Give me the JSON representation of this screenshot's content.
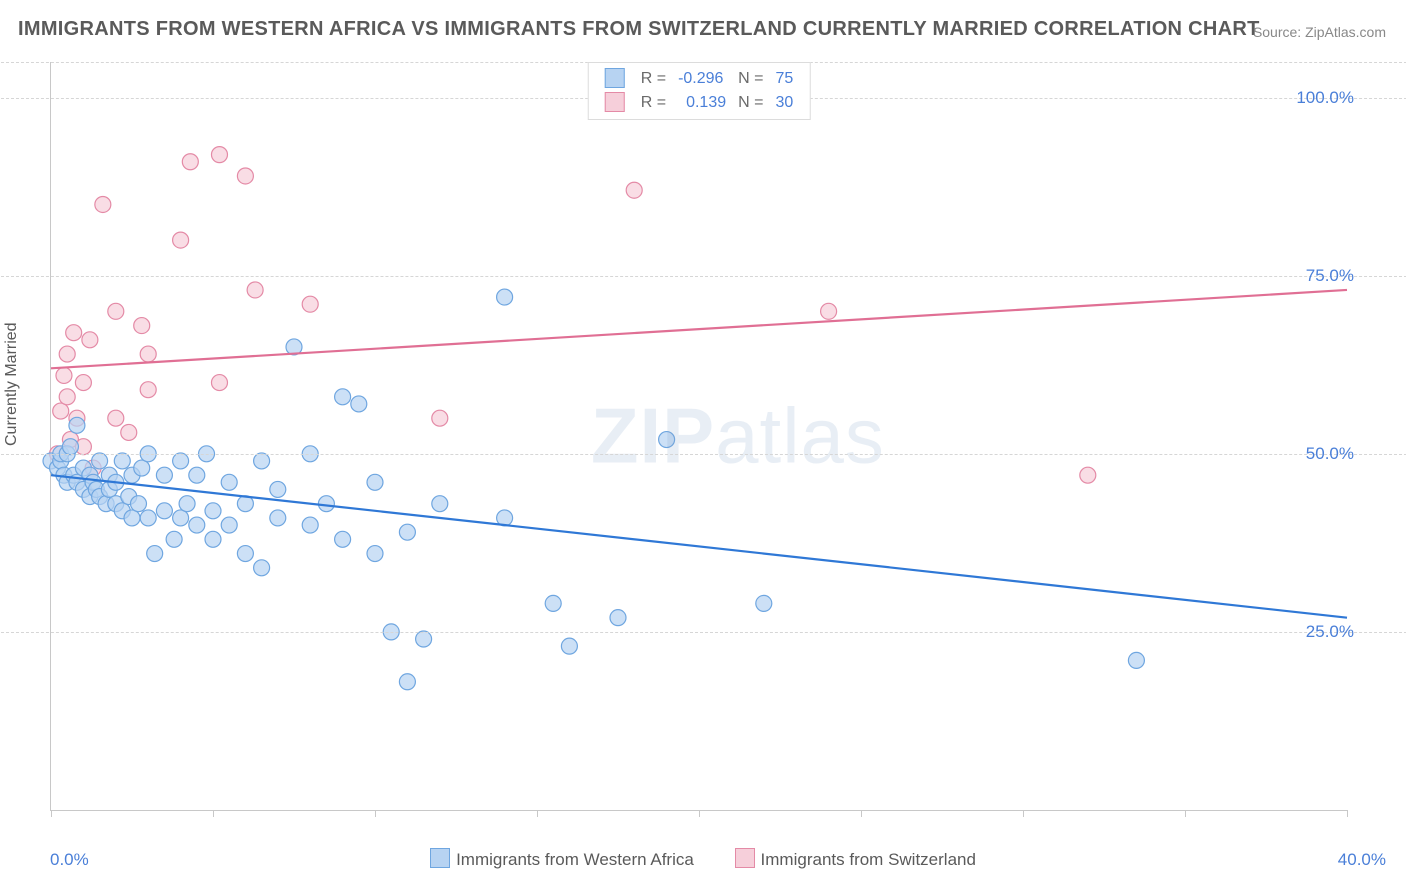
{
  "title": "IMMIGRANTS FROM WESTERN AFRICA VS IMMIGRANTS FROM SWITZERLAND CURRENTLY MARRIED CORRELATION CHART",
  "source": "Source: ZipAtlas.com",
  "watermark_bold": "ZIP",
  "watermark_light": "atlas",
  "chart": {
    "type": "scatter_with_regression",
    "x_min": 0.0,
    "x_max": 40.0,
    "y_min": 0.0,
    "y_max": 105.0,
    "x_tick_positions": [
      0,
      5,
      10,
      15,
      20,
      25,
      30,
      35,
      40
    ],
    "x_tick_labels_shown": {
      "0": "0.0%",
      "40": "40.0%"
    },
    "y_ticks": [
      {
        "v": 25.0,
        "label": "25.0%"
      },
      {
        "v": 50.0,
        "label": "50.0%"
      },
      {
        "v": 75.0,
        "label": "75.0%"
      },
      {
        "v": 100.0,
        "label": "100.0%"
      }
    ],
    "y_axis_label": "Currently Married",
    "grid_color": "#d6d6d6",
    "axis_color": "#c8c8c8",
    "background": "#ffffff"
  },
  "series": [
    {
      "name": "Immigrants from Western Africa",
      "color_fill": "#b7d3f2",
      "color_stroke": "#6fa6e0",
      "line_color": "#2f78d6",
      "marker_radius": 8,
      "R": "-0.296",
      "N": "75",
      "regression": {
        "x1": 0.0,
        "y1": 47.0,
        "x2": 40.0,
        "y2": 27.0
      },
      "points": [
        [
          0.0,
          49
        ],
        [
          0.2,
          48
        ],
        [
          0.3,
          49
        ],
        [
          0.3,
          50
        ],
        [
          0.4,
          47
        ],
        [
          0.5,
          46
        ],
        [
          0.5,
          50
        ],
        [
          0.6,
          51
        ],
        [
          0.7,
          47
        ],
        [
          0.8,
          54
        ],
        [
          0.8,
          46
        ],
        [
          1.0,
          45
        ],
        [
          1.0,
          48
        ],
        [
          1.2,
          47
        ],
        [
          1.2,
          44
        ],
        [
          1.3,
          46
        ],
        [
          1.4,
          45
        ],
        [
          1.5,
          49
        ],
        [
          1.5,
          44
        ],
        [
          1.7,
          43
        ],
        [
          1.8,
          47
        ],
        [
          1.8,
          45
        ],
        [
          2.0,
          46
        ],
        [
          2.0,
          43
        ],
        [
          2.2,
          49
        ],
        [
          2.2,
          42
        ],
        [
          2.4,
          44
        ],
        [
          2.5,
          47
        ],
        [
          2.5,
          41
        ],
        [
          2.7,
          43
        ],
        [
          2.8,
          48
        ],
        [
          3.0,
          41
        ],
        [
          3.0,
          50
        ],
        [
          3.2,
          36
        ],
        [
          3.5,
          47
        ],
        [
          3.5,
          42
        ],
        [
          3.8,
          38
        ],
        [
          4.0,
          49
        ],
        [
          4.0,
          41
        ],
        [
          4.2,
          43
        ],
        [
          4.5,
          47
        ],
        [
          4.5,
          40
        ],
        [
          4.8,
          50
        ],
        [
          5.0,
          42
        ],
        [
          5.0,
          38
        ],
        [
          5.5,
          40
        ],
        [
          5.5,
          46
        ],
        [
          6.0,
          43
        ],
        [
          6.0,
          36
        ],
        [
          6.5,
          49
        ],
        [
          6.5,
          34
        ],
        [
          7.0,
          41
        ],
        [
          7.0,
          45
        ],
        [
          7.5,
          65
        ],
        [
          8.0,
          40
        ],
        [
          8.0,
          50
        ],
        [
          8.5,
          43
        ],
        [
          9.0,
          58
        ],
        [
          9.0,
          38
        ],
        [
          9.5,
          57
        ],
        [
          10.0,
          36
        ],
        [
          10.0,
          46
        ],
        [
          10.5,
          25
        ],
        [
          11.0,
          18
        ],
        [
          11.0,
          39
        ],
        [
          11.5,
          24
        ],
        [
          12.0,
          43
        ],
        [
          14.0,
          72
        ],
        [
          14.0,
          41
        ],
        [
          15.5,
          29
        ],
        [
          16.0,
          23
        ],
        [
          17.5,
          27
        ],
        [
          19.0,
          52
        ],
        [
          22.0,
          29
        ],
        [
          33.5,
          21
        ]
      ]
    },
    {
      "name": "Immigrants from Switzerland",
      "color_fill": "#f6cfda",
      "color_stroke": "#e48aa6",
      "line_color": "#e06f94",
      "marker_radius": 8,
      "R": "0.139",
      "N": "30",
      "regression": {
        "x1": 0.0,
        "y1": 62.0,
        "x2": 40.0,
        "y2": 73.0
      },
      "points": [
        [
          0.2,
          50
        ],
        [
          0.3,
          56
        ],
        [
          0.4,
          61
        ],
        [
          0.5,
          58
        ],
        [
          0.5,
          64
        ],
        [
          0.6,
          52
        ],
        [
          0.7,
          67
        ],
        [
          0.8,
          55
        ],
        [
          1.0,
          60
        ],
        [
          1.0,
          51
        ],
        [
          1.2,
          66
        ],
        [
          1.3,
          48
        ],
        [
          1.6,
          85
        ],
        [
          2.0,
          70
        ],
        [
          2.0,
          55
        ],
        [
          2.4,
          53
        ],
        [
          2.8,
          68
        ],
        [
          3.0,
          64
        ],
        [
          3.0,
          59
        ],
        [
          4.0,
          80
        ],
        [
          4.3,
          91
        ],
        [
          5.2,
          92
        ],
        [
          5.2,
          60
        ],
        [
          6.0,
          89
        ],
        [
          6.3,
          73
        ],
        [
          8.0,
          71
        ],
        [
          12.0,
          55
        ],
        [
          18.0,
          87
        ],
        [
          24.0,
          70
        ],
        [
          32.0,
          47
        ]
      ]
    }
  ],
  "top_legend": {
    "R_label": "R =",
    "N_label": "N ="
  },
  "bottom_legend": {
    "item1": "Immigrants from Western Africa",
    "item2": "Immigrants from Switzerland"
  }
}
